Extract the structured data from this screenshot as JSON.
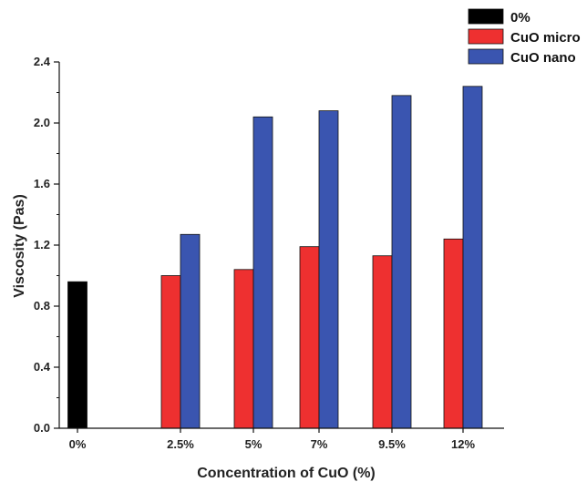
{
  "chart_data": {
    "type": "bar",
    "title": "",
    "xlabel": "Concentration of CuO (%)",
    "ylabel": "Viscosity (Pas)",
    "ylim": [
      0,
      2.4
    ],
    "yticks": [
      "0.0",
      "0.4",
      "0.8",
      "1.2",
      "1.6",
      "2.0",
      "2.4"
    ],
    "categories": [
      "0%",
      "2.5%",
      "5%",
      "7%",
      "9.5%",
      "12%"
    ],
    "series": [
      {
        "name": "0%",
        "color": "#000000",
        "values": [
          0.96,
          null,
          null,
          null,
          null,
          null
        ]
      },
      {
        "name": "CuO micro",
        "color": "#ee3030",
        "values": [
          null,
          1.0,
          1.04,
          1.19,
          1.13,
          1.24
        ]
      },
      {
        "name": "CuO nano",
        "color": "#3a55b0",
        "values": [
          null,
          1.27,
          2.04,
          2.08,
          2.18,
          2.24
        ]
      }
    ],
    "legend_position": "top-right",
    "grid": false
  }
}
